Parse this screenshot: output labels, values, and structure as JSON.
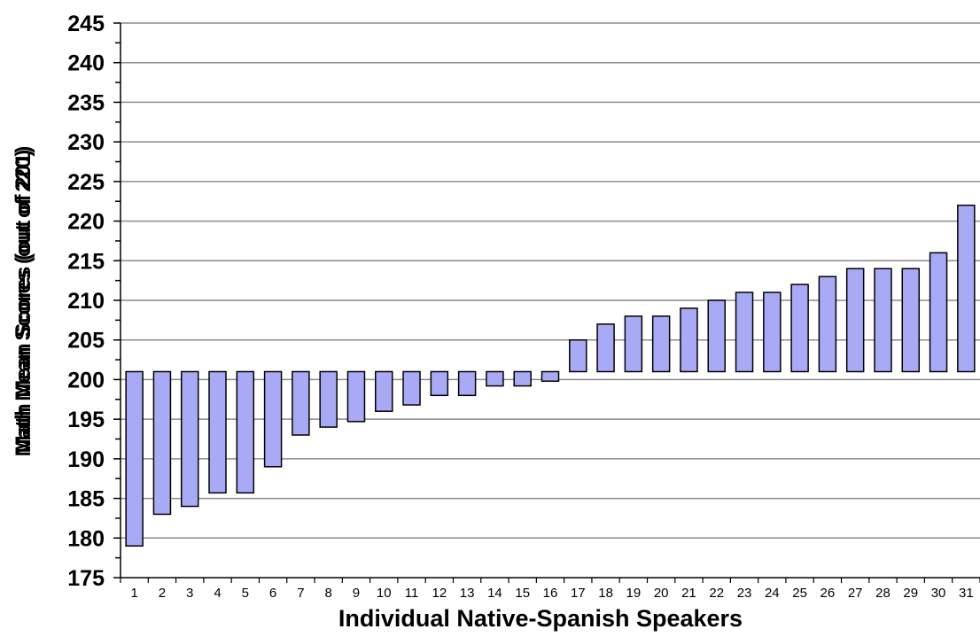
{
  "chart_data": {
    "type": "bar",
    "xlabel": "Individual Native-Spanish Speakers",
    "ylabel_overlap": [
      "Math Mean Scores (out of 201)",
      "Math Mean Scores (out of 220)"
    ],
    "baseline": 201,
    "ylim": [
      175,
      245
    ],
    "yticks": [
      175,
      180,
      185,
      190,
      195,
      200,
      205,
      210,
      215,
      220,
      225,
      230,
      235,
      240,
      245
    ],
    "grid": true,
    "bar_color": "#a9aaf5",
    "categories": [
      "1",
      "2",
      "3",
      "4",
      "5",
      "6",
      "7",
      "8",
      "9",
      "10",
      "11",
      "12",
      "13",
      "14",
      "15",
      "16",
      "17",
      "18",
      "19",
      "20",
      "21",
      "22",
      "23",
      "24",
      "25",
      "26",
      "27",
      "28",
      "29",
      "30",
      "31"
    ],
    "values": [
      179,
      183,
      184,
      185.7,
      185.7,
      189,
      193,
      194,
      194.7,
      196,
      196.8,
      198,
      198,
      199.2,
      199.2,
      199.8,
      205,
      207,
      208,
      208,
      209,
      210,
      211,
      211,
      212,
      213,
      214,
      214,
      214,
      216,
      222
    ]
  }
}
